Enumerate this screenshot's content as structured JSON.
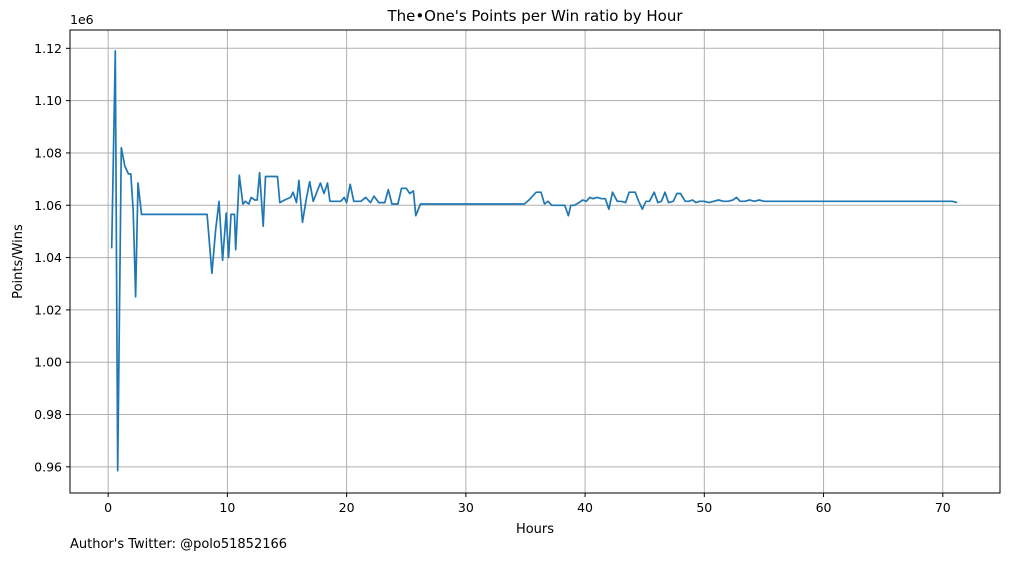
{
  "chart_data": {
    "type": "line",
    "title": "The•One's Points per Win ratio by Hour",
    "xlabel": "Hours",
    "ylabel": "Points/Wins",
    "offset_text": "1e6",
    "xlim": [
      -3.2,
      74.8
    ],
    "ylim": [
      950000,
      1127000
    ],
    "xticks": [
      0,
      10,
      20,
      30,
      40,
      50,
      60,
      70
    ],
    "yticks": [
      960000,
      980000,
      1000000,
      1020000,
      1040000,
      1060000,
      1080000,
      1100000,
      1120000
    ],
    "ytick_labels": [
      "0.96",
      "0.98",
      "1.00",
      "1.02",
      "1.04",
      "1.06",
      "1.08",
      "1.10",
      "1.12"
    ],
    "grid": true,
    "series": [
      {
        "color": "#1f77b4",
        "points": [
          [
            0.3,
            1043500
          ],
          [
            0.6,
            1119000
          ],
          [
            0.8,
            958500
          ],
          [
            1.1,
            1082000
          ],
          [
            1.4,
            1075000
          ],
          [
            1.7,
            1072000
          ],
          [
            1.9,
            1072000
          ],
          [
            2.1,
            1058000
          ],
          [
            2.3,
            1025000
          ],
          [
            2.5,
            1068500
          ],
          [
            2.8,
            1056500
          ],
          [
            8.3,
            1056500
          ],
          [
            8.7,
            1034000
          ],
          [
            9.0,
            1050000
          ],
          [
            9.3,
            1061500
          ],
          [
            9.6,
            1039000
          ],
          [
            9.9,
            1057000
          ],
          [
            10.1,
            1040000
          ],
          [
            10.3,
            1056500
          ],
          [
            10.6,
            1056500
          ],
          [
            10.7,
            1043000
          ],
          [
            11.0,
            1071500
          ],
          [
            11.3,
            1060500
          ],
          [
            11.5,
            1061500
          ],
          [
            11.8,
            1060500
          ],
          [
            12.0,
            1063000
          ],
          [
            12.3,
            1062000
          ],
          [
            12.5,
            1062000
          ],
          [
            12.7,
            1072500
          ],
          [
            13.0,
            1052000
          ],
          [
            13.2,
            1071000
          ],
          [
            14.2,
            1071000
          ],
          [
            14.4,
            1061000
          ],
          [
            14.8,
            1062000
          ],
          [
            15.3,
            1063000
          ],
          [
            15.5,
            1065000
          ],
          [
            15.8,
            1061000
          ],
          [
            16.0,
            1069500
          ],
          [
            16.3,
            1053500
          ],
          [
            16.6,
            1062000
          ],
          [
            16.9,
            1069000
          ],
          [
            17.2,
            1061500
          ],
          [
            17.5,
            1065000
          ],
          [
            17.8,
            1068500
          ],
          [
            18.1,
            1064500
          ],
          [
            18.4,
            1068500
          ],
          [
            18.6,
            1061500
          ],
          [
            19.0,
            1061500
          ],
          [
            19.5,
            1061500
          ],
          [
            19.8,
            1063000
          ],
          [
            20.0,
            1061000
          ],
          [
            20.3,
            1068000
          ],
          [
            20.6,
            1061500
          ],
          [
            21.2,
            1061500
          ],
          [
            21.6,
            1063000
          ],
          [
            22.0,
            1061000
          ],
          [
            22.3,
            1063500
          ],
          [
            22.7,
            1061000
          ],
          [
            23.2,
            1061000
          ],
          [
            23.5,
            1066000
          ],
          [
            23.8,
            1060500
          ],
          [
            24.3,
            1060500
          ],
          [
            24.6,
            1066500
          ],
          [
            25.0,
            1066500
          ],
          [
            25.3,
            1064500
          ],
          [
            25.6,
            1065500
          ],
          [
            25.8,
            1056000
          ],
          [
            26.2,
            1060500
          ],
          [
            34.9,
            1060500
          ],
          [
            35.3,
            1062000
          ],
          [
            35.6,
            1063500
          ],
          [
            35.9,
            1065000
          ],
          [
            36.3,
            1065000
          ],
          [
            36.6,
            1060500
          ],
          [
            36.9,
            1061500
          ],
          [
            37.2,
            1060000
          ],
          [
            38.3,
            1060000
          ],
          [
            38.6,
            1056000
          ],
          [
            38.8,
            1060000
          ],
          [
            39.1,
            1060000
          ],
          [
            39.5,
            1061000
          ],
          [
            39.8,
            1062000
          ],
          [
            40.1,
            1061500
          ],
          [
            40.4,
            1063000
          ],
          [
            40.7,
            1062500
          ],
          [
            41.0,
            1063000
          ],
          [
            41.4,
            1062500
          ],
          [
            41.7,
            1062500
          ],
          [
            42.0,
            1058500
          ],
          [
            42.3,
            1065000
          ],
          [
            42.7,
            1061500
          ],
          [
            43.0,
            1061500
          ],
          [
            43.4,
            1061000
          ],
          [
            43.7,
            1065000
          ],
          [
            44.2,
            1065000
          ],
          [
            44.5,
            1061500
          ],
          [
            44.8,
            1058500
          ],
          [
            45.1,
            1061500
          ],
          [
            45.4,
            1061500
          ],
          [
            45.8,
            1065000
          ],
          [
            46.1,
            1061000
          ],
          [
            46.4,
            1061500
          ],
          [
            46.7,
            1065000
          ],
          [
            47.0,
            1061000
          ],
          [
            47.4,
            1061500
          ],
          [
            47.7,
            1064500
          ],
          [
            48.0,
            1064500
          ],
          [
            48.4,
            1061500
          ],
          [
            48.7,
            1061500
          ],
          [
            49.0,
            1062000
          ],
          [
            49.3,
            1061000
          ],
          [
            49.6,
            1061500
          ],
          [
            50.0,
            1061500
          ],
          [
            50.4,
            1061000
          ],
          [
            50.8,
            1061500
          ],
          [
            51.2,
            1062000
          ],
          [
            51.6,
            1061500
          ],
          [
            52.0,
            1061500
          ],
          [
            52.4,
            1062000
          ],
          [
            52.7,
            1063000
          ],
          [
            53.0,
            1061500
          ],
          [
            53.4,
            1061500
          ],
          [
            53.8,
            1062000
          ],
          [
            54.2,
            1061500
          ],
          [
            54.6,
            1062000
          ],
          [
            55.0,
            1061500
          ],
          [
            55.4,
            1061500
          ],
          [
            56.0,
            1061500
          ],
          [
            56.5,
            1061500
          ],
          [
            57.0,
            1061500
          ],
          [
            57.4,
            1061500
          ],
          [
            58.0,
            1061500
          ],
          [
            58.5,
            1061500
          ],
          [
            59.0,
            1061500
          ],
          [
            59.5,
            1061500
          ],
          [
            60.0,
            1061500
          ],
          [
            60.5,
            1061500
          ],
          [
            61.0,
            1061500
          ],
          [
            61.5,
            1061500
          ],
          [
            62.0,
            1061500
          ],
          [
            62.4,
            1061500
          ],
          [
            62.8,
            1061500
          ],
          [
            63.2,
            1061500
          ],
          [
            63.6,
            1061500
          ],
          [
            64.0,
            1061500
          ],
          [
            64.4,
            1061500
          ],
          [
            64.8,
            1061500
          ],
          [
            65.2,
            1061500
          ],
          [
            65.6,
            1061500
          ],
          [
            66.0,
            1061500
          ],
          [
            66.4,
            1061500
          ],
          [
            66.8,
            1061500
          ],
          [
            67.2,
            1061500
          ],
          [
            67.6,
            1061500
          ],
          [
            68.0,
            1061500
          ],
          [
            68.4,
            1061500
          ],
          [
            68.8,
            1061500
          ],
          [
            69.2,
            1061500
          ],
          [
            69.6,
            1061500
          ],
          [
            70.0,
            1061500
          ],
          [
            70.4,
            1061500
          ],
          [
            70.8,
            1061500
          ],
          [
            71.2,
            1061000
          ]
        ]
      }
    ]
  },
  "footer": {
    "note": "Author's Twitter: @polo51852166"
  }
}
